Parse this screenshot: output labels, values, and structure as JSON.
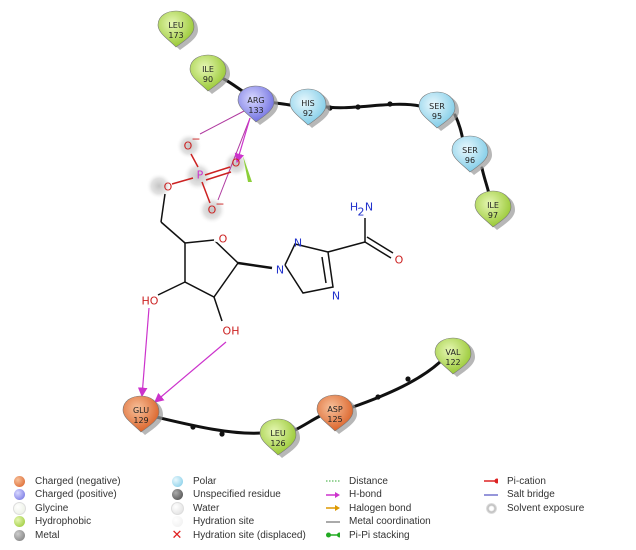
{
  "residues": [
    {
      "name": "LEU",
      "num": "173",
      "type": "hydrophobic"
    },
    {
      "name": "ILE",
      "num": "90",
      "type": "hydrophobic"
    },
    {
      "name": "ARG",
      "num": "133",
      "type": "positive"
    },
    {
      "name": "HIS",
      "num": "92",
      "type": "polar"
    },
    {
      "name": "SER",
      "num": "95",
      "type": "polar"
    },
    {
      "name": "SER",
      "num": "96",
      "type": "polar"
    },
    {
      "name": "ILE",
      "num": "97",
      "type": "hydrophobic"
    },
    {
      "name": "VAL",
      "num": "122",
      "type": "hydrophobic"
    },
    {
      "name": "ASP",
      "num": "125",
      "type": "negative"
    },
    {
      "name": "LEU",
      "num": "126",
      "type": "hydrophobic"
    },
    {
      "name": "GLU",
      "num": "129",
      "type": "negative"
    }
  ],
  "atoms": {
    "o_minus_1": "O",
    "o_minus_2": "O",
    "minus": "−",
    "p": "P",
    "o_double": "O",
    "o_ester": "O",
    "o_ring": "O",
    "n1": "N",
    "n2": "N",
    "n4": "N",
    "nh2": "H",
    "nh2_sub": "2",
    "nh2_n": "N",
    "o_amide": "O",
    "oh3": "HO",
    "oh2": "OH"
  },
  "colors": {
    "hydrophobic": "#a6d33a",
    "polar": "#8ed6ee",
    "positive": "#8080f0",
    "negative": "#e8743a",
    "hbond": "#cc33cc",
    "saltbridge": "#9b3fb0"
  },
  "legend": {
    "col1": [
      {
        "label": "Charged (negative)",
        "icon": "negative-ball"
      },
      {
        "label": "Charged (positive)",
        "icon": "positive-ball"
      },
      {
        "label": "Glycine",
        "icon": "glycine-ball"
      },
      {
        "label": "Hydrophobic",
        "icon": "hydrophobic-ball"
      },
      {
        "label": "Metal",
        "icon": "metal-ball"
      }
    ],
    "col2": [
      {
        "label": "Polar",
        "icon": "polar-ball"
      },
      {
        "label": "Unspecified residue",
        "icon": "unspecified-ball"
      },
      {
        "label": "Water",
        "icon": "water-ball"
      },
      {
        "label": "Hydration site",
        "icon": "hydration-site-ball"
      },
      {
        "label": "Hydration site (displaced)",
        "icon": "red-x-icon"
      }
    ],
    "col3": [
      {
        "label": "Distance",
        "icon": "dotted-green-line"
      },
      {
        "label": "H-bond",
        "icon": "magenta-arrow"
      },
      {
        "label": "Halogen bond",
        "icon": "orange-arrow"
      },
      {
        "label": "Metal coordination",
        "icon": "gray-line"
      },
      {
        "label": "Pi-Pi stacking",
        "icon": "green-dumbbell"
      }
    ],
    "col4": [
      {
        "label": "Pi-cation",
        "icon": "red-line-dot"
      },
      {
        "label": "Salt bridge",
        "icon": "blue-purple-line"
      },
      {
        "label": "Solvent exposure",
        "icon": "gray-halo"
      }
    ]
  }
}
